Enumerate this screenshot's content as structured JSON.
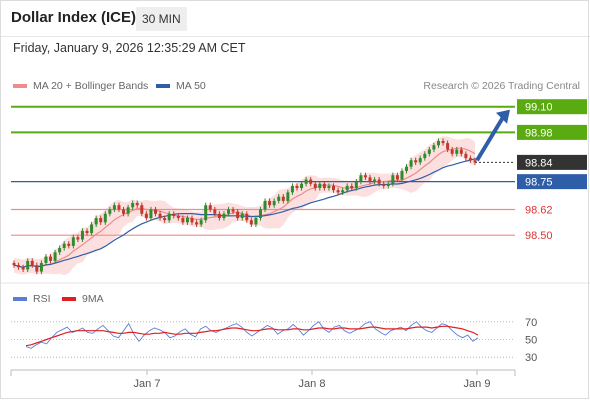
{
  "header": {
    "title": "Dollar Index (ICE)",
    "timeframe": "30 MIN"
  },
  "timestamp": "Friday, January 9, 2026 12:35:29 AM CET",
  "legend": {
    "ma20_label": "MA 20 + Bollinger Bands",
    "ma50_label": "MA 50",
    "credit": "Research © 2026 Trading Central"
  },
  "rsi_legend": {
    "rsi_label": "RSI",
    "ma_label": "9MA"
  },
  "colors": {
    "resistance": "#5aaa12",
    "support": "#f08b8b",
    "pivot": "#2f5ea8",
    "ma20": "#f08b8b",
    "ma50": "#2f5ea8",
    "band_fill": "#fbd3d3",
    "candle_up": "#2e8b2e",
    "candle_down": "#c0392b",
    "arrow": "#2f5ea8",
    "rsi": "#5b7fd6",
    "rsi_ma": "#e02020",
    "last_price": "#333333"
  },
  "chart_data": [
    {
      "type": "candlestick",
      "ylim": [
        98.3,
        99.15
      ],
      "x_tick_labels": [
        "Jan 7",
        "Jan 8",
        "Jan 9"
      ],
      "levels": [
        {
          "label": "99.10",
          "value": 99.1,
          "kind": "resistance"
        },
        {
          "label": "98.98",
          "value": 98.98,
          "kind": "resistance"
        },
        {
          "label": "98.84",
          "value": 98.84,
          "kind": "last"
        },
        {
          "label": "98.75",
          "value": 98.75,
          "kind": "pivot"
        },
        {
          "label": "98.62",
          "value": 98.62,
          "kind": "support"
        },
        {
          "label": "98.50",
          "value": 98.5,
          "kind": "support"
        }
      ],
      "closes": [
        98.36,
        98.35,
        98.34,
        98.38,
        98.36,
        98.33,
        98.37,
        98.4,
        98.38,
        98.42,
        98.44,
        98.46,
        98.45,
        98.49,
        98.48,
        98.52,
        98.51,
        98.55,
        98.58,
        98.56,
        98.6,
        98.62,
        98.64,
        98.62,
        98.6,
        98.63,
        98.65,
        98.64,
        98.6,
        98.58,
        98.62,
        98.6,
        98.58,
        98.57,
        98.6,
        98.59,
        98.58,
        98.56,
        98.58,
        98.56,
        98.55,
        98.57,
        98.64,
        98.62,
        98.6,
        98.58,
        98.6,
        98.62,
        98.61,
        98.58,
        98.6,
        98.57,
        98.55,
        98.58,
        98.62,
        98.66,
        98.64,
        98.66,
        98.68,
        98.66,
        98.7,
        98.73,
        98.72,
        98.74,
        98.76,
        98.74,
        98.72,
        98.74,
        98.72,
        98.73,
        98.71,
        98.7,
        98.71,
        98.73,
        98.72,
        98.75,
        98.78,
        98.77,
        98.75,
        98.76,
        98.74,
        98.73,
        98.74,
        98.78,
        98.76,
        98.8,
        98.82,
        98.85,
        98.84,
        98.86,
        98.88,
        98.9,
        98.92,
        98.94,
        98.93,
        98.9,
        98.88,
        98.9,
        98.88,
        98.86,
        98.85,
        98.84
      ]
    },
    {
      "type": "line",
      "title": "RSI",
      "ylim": [
        20,
        80
      ],
      "y_tick_labels": [
        "70",
        "50",
        "30"
      ],
      "y_ticks": [
        70,
        50,
        30
      ],
      "series": [
        {
          "name": "RSI",
          "values": [
            42,
            40,
            44,
            47,
            45,
            52,
            58,
            61,
            64,
            58,
            60,
            63,
            58,
            57,
            62,
            66,
            60,
            54,
            52,
            60,
            68,
            56,
            48,
            55,
            60,
            63,
            61,
            58,
            52,
            54,
            59,
            62,
            56,
            53,
            62,
            65,
            60,
            58,
            61,
            63,
            66,
            68,
            64,
            58,
            54,
            58,
            62,
            66,
            63,
            56,
            60,
            62,
            67,
            62,
            55,
            60,
            66,
            70,
            62,
            58,
            64,
            66,
            60,
            57,
            60,
            63,
            68,
            70,
            62,
            58,
            55,
            60,
            62,
            64,
            60,
            66,
            70,
            64,
            60,
            58,
            63,
            68,
            66,
            60,
            55,
            52,
            55,
            48,
            52
          ]
        },
        {
          "name": "9MA",
          "values": [
            43,
            44,
            46,
            48,
            50,
            52,
            54,
            56,
            58,
            59,
            60,
            60,
            60,
            60,
            60,
            60,
            59,
            58,
            57,
            57,
            58,
            58,
            57,
            56,
            56,
            57,
            57,
            58,
            57,
            56,
            56,
            57,
            57,
            57,
            58,
            59,
            60,
            60,
            61,
            62,
            63,
            63,
            62,
            61,
            60,
            60,
            61,
            62,
            62,
            61,
            61,
            61,
            62,
            62,
            61,
            61,
            62,
            63,
            63,
            62,
            62,
            63,
            63,
            62,
            62,
            62,
            63,
            64,
            64,
            63,
            62,
            62,
            62,
            62,
            62,
            63,
            64,
            64,
            64,
            63,
            64,
            65,
            65,
            64,
            63,
            62,
            60,
            58,
            55
          ]
        }
      ]
    }
  ]
}
